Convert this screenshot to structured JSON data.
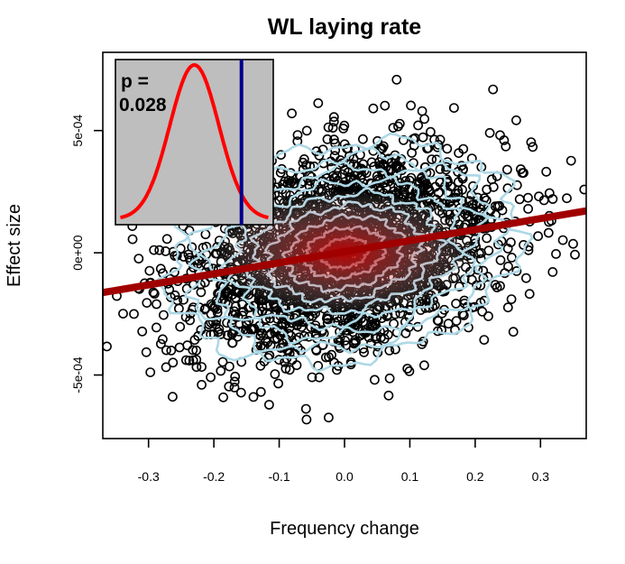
{
  "chart_data": {
    "type": "scatter",
    "title": "WL laying rate",
    "xlabel": "Frequency change",
    "ylabel": "Effect size",
    "xlim": [
      -0.37,
      0.37
    ],
    "ylim": [
      -0.00076,
      0.00082
    ],
    "x_ticks": [
      -0.3,
      -0.2,
      -0.1,
      0.0,
      0.1,
      0.2,
      0.3
    ],
    "x_tick_labels": [
      "-0.3",
      "-0.2",
      "-0.1",
      "0.0",
      "0.1",
      "0.2",
      "0.3"
    ],
    "y_ticks": [
      -0.0005,
      0,
      0.0005
    ],
    "y_tick_labels": [
      "-5e-04",
      "0e+00",
      "5e-04"
    ],
    "grid": false,
    "points": {
      "marker": "open-circle",
      "color": "#000000",
      "x_sd": 0.12,
      "y_sd": 0.00021,
      "correlation": 0.28,
      "density_center": [
        0.0,
        0.0
      ]
    },
    "density_contour_color": "#add8e6",
    "density_heat_color": "#cc0000",
    "regression_line": {
      "color": "#a00000",
      "intercept": 4.4e-06,
      "slope": 0.000452
    },
    "inset": {
      "background": "#bebebe",
      "annotation_line1": "p =",
      "annotation_line2": "0.028",
      "null_distribution": {
        "type": "normal",
        "mean": 0.0,
        "sd": 1.0,
        "color": "#ff0000"
      },
      "observed": {
        "value": 1.91,
        "color": "#00008b"
      },
      "xlim": [
        -3.2,
        3.2
      ]
    }
  }
}
